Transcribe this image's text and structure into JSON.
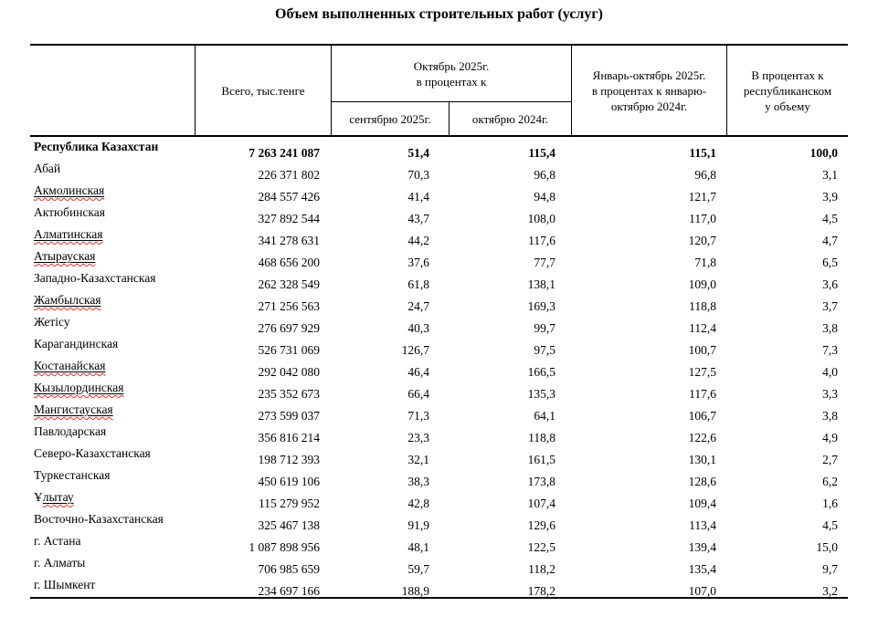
{
  "title": "Объем выполненных строительных работ (услуг)",
  "colors": {
    "text": "#000000",
    "border": "#000000",
    "background": "#ffffff",
    "spellcheck_underline": "#e0342c"
  },
  "table": {
    "columns": {
      "region": "",
      "total": "Всего, тыс.тенге",
      "october_group": "Октябрь 2025г.\nв процентах к",
      "to_september": "сентябрю 2025г.",
      "to_october": "октябрю 2024г.",
      "jan_october": "Январь-октябрь 2025г.\nв процентах к январю-\nоктябрю 2024г.",
      "share_of_republic": "В процентах к\nреспубликанском\nу объему"
    },
    "rows": [
      {
        "name": "Республика Казахстан",
        "bold": true,
        "values": [
          "7 263 241 087",
          "51,4",
          "115,4",
          "115,1",
          "100,0"
        ]
      },
      {
        "name": "Абай",
        "values": [
          "226 371 802",
          "70,3",
          "96,8",
          "96,8",
          "3,1"
        ]
      },
      {
        "name": "Акмолинская",
        "underline": true,
        "values": [
          "284 557 426",
          "41,4",
          "94,8",
          "121,7",
          "3,9"
        ]
      },
      {
        "name": "Актюбинская",
        "values": [
          "327 892 544",
          "43,7",
          "108,0",
          "117,0",
          "4,5"
        ]
      },
      {
        "name": "Алматинская",
        "underline": true,
        "values": [
          "341 278 631",
          "44,2",
          "117,6",
          "120,7",
          "4,7"
        ]
      },
      {
        "name": "Атырауская",
        "underline": true,
        "values": [
          "468 656 200",
          "37,6",
          "77,7",
          "71,8",
          "6,5"
        ]
      },
      {
        "name": "Западно-Казахстанская",
        "values": [
          "262 328 549",
          "61,8",
          "138,1",
          "109,0",
          "3,6"
        ]
      },
      {
        "name": "Жамбылская",
        "underline": true,
        "values": [
          "271 256 563",
          "24,7",
          "169,3",
          "118,8",
          "3,7"
        ]
      },
      {
        "name": "Жетісу",
        "values": [
          "276 697 929",
          "40,3",
          "99,7",
          "112,4",
          "3,8"
        ]
      },
      {
        "name": "Карагандинская",
        "values": [
          "526 731 069",
          "126,7",
          "97,5",
          "100,7",
          "7,3"
        ]
      },
      {
        "name": "Костанайская",
        "underline": true,
        "values": [
          "292 042 080",
          "46,4",
          "166,5",
          "127,5",
          "4,0"
        ]
      },
      {
        "name": "Кызылординская",
        "underline": true,
        "values": [
          "235 352 673",
          "66,4",
          "135,3",
          "117,6",
          "3,3"
        ]
      },
      {
        "name": "Мангистауская",
        "underline": true,
        "values": [
          "273 599 037",
          "71,3",
          "64,1",
          "106,7",
          "3,8"
        ]
      },
      {
        "name": "Павлодарская",
        "values": [
          "356 816 214",
          "23,3",
          "118,8",
          "122,6",
          "4,9"
        ]
      },
      {
        "name": "Северо-Казахстанская",
        "values": [
          "198 712 393",
          "32,1",
          "161,5",
          "130,1",
          "2,7"
        ]
      },
      {
        "name": "Туркестанская",
        "values": [
          "450 619 106",
          "38,3",
          "173,8",
          "128,6",
          "6,2"
        ]
      },
      {
        "name": "Ұлытау",
        "underline": true,
        "underline_from": 1,
        "values": [
          "115 279 952",
          "42,8",
          "107,4",
          "109,4",
          "1,6"
        ]
      },
      {
        "name": "Восточно-Казахстанская",
        "values": [
          "325 467 138",
          "91,9",
          "129,6",
          "113,4",
          "4,5"
        ]
      },
      {
        "name": "г. Астана",
        "values": [
          "1 087 898 956",
          "48,1",
          "122,5",
          "139,4",
          "15,0"
        ]
      },
      {
        "name": "г. Алматы",
        "values": [
          "706 985 659",
          "59,7",
          "118,2",
          "135,4",
          "9,7"
        ]
      },
      {
        "name": "г. Шымкент",
        "values": [
          "234 697 166",
          "188,9",
          "178,2",
          "107,0",
          "3,2"
        ]
      }
    ]
  }
}
